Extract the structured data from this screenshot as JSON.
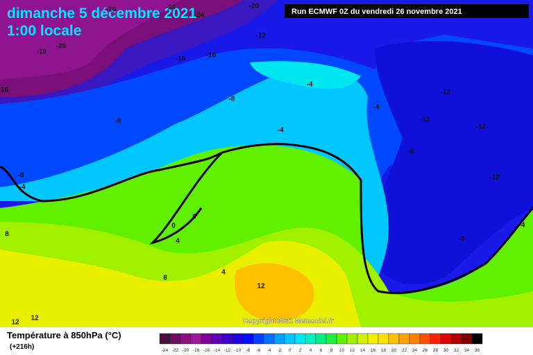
{
  "header": {
    "title": "dimanche 5 décembre 2021",
    "subtitle": "1:00 locale",
    "run": "Run ECMWF 0Z du vendredi 26 novembre 2021"
  },
  "map": {
    "copyright": "Copyright 2021 Meteociel.fr",
    "contour_labels": [
      "-24",
      "-20",
      "-24",
      "-16",
      "-16",
      "-20",
      "-16",
      "-16",
      "-12",
      "-16",
      "-8",
      "-4",
      "-8",
      "-4",
      "-8",
      "-4",
      "0",
      "0",
      "4",
      "8",
      "4",
      "8",
      "12",
      "12",
      "12",
      "-12",
      "-12",
      "-12",
      "-8",
      "-12",
      "-4",
      "-8",
      "-4"
    ]
  },
  "legend": {
    "title": "Température à 850hPa (°C)",
    "lead": "(+216h)",
    "ticks": [
      -24,
      -22,
      -20,
      -18,
      -16,
      -14,
      -12,
      -10,
      -8,
      -6,
      -4,
      -2,
      0,
      2,
      4,
      6,
      8,
      10,
      12,
      14,
      16,
      18,
      20,
      22,
      24,
      26,
      28,
      30,
      32,
      34,
      36
    ],
    "colors": [
      "#4b0f3f",
      "#6b1060",
      "#8a127e",
      "#a0189a",
      "#8000a0",
      "#6000b8",
      "#3d00c8",
      "#2000e0",
      "#0010ff",
      "#0040ff",
      "#0070ff",
      "#00a0ff",
      "#00c8ff",
      "#00e6f0",
      "#00f0c0",
      "#00f080",
      "#20f040",
      "#60f000",
      "#a0f000",
      "#d0f000",
      "#f0f000",
      "#ffe000",
      "#ffc000",
      "#ffa000",
      "#ff8000",
      "#ff5000",
      "#ff2000",
      "#e00000",
      "#b00000",
      "#800000",
      "#000000"
    ]
  }
}
